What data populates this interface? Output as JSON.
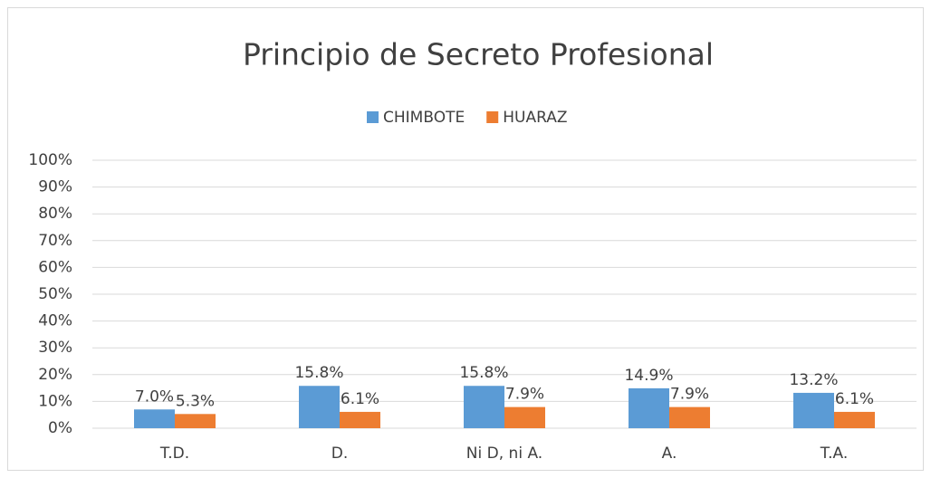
{
  "chart_data": {
    "type": "bar",
    "title": "Principio de Secreto Profesional",
    "categories": [
      "T.D.",
      "D.",
      "Ni D, ni A.",
      "A.",
      "T.A."
    ],
    "series": [
      {
        "name": "CHIMBOTE",
        "color": "#5b9bd5",
        "values": [
          7.0,
          15.8,
          15.8,
          14.9,
          13.2
        ],
        "value_labels": [
          "7.0%",
          "15.8%",
          "15.8%",
          "14.9%",
          "13.2%"
        ]
      },
      {
        "name": "HUARAZ",
        "color": "#ed7d31",
        "values": [
          5.3,
          6.1,
          7.9,
          7.9,
          6.1
        ],
        "value_labels": [
          "5.3%",
          "6.1%",
          "7.9%",
          "7.9%",
          "6.1%"
        ]
      }
    ],
    "ylim": [
      0,
      100
    ],
    "yticks": [
      {
        "value": 0,
        "label": "0%"
      },
      {
        "value": 10,
        "label": "10%"
      },
      {
        "value": 20,
        "label": "20%"
      },
      {
        "value": 30,
        "label": "30%"
      },
      {
        "value": 40,
        "label": "40%"
      },
      {
        "value": 50,
        "label": "50%"
      },
      {
        "value": 60,
        "label": "60%"
      },
      {
        "value": 70,
        "label": "70%"
      },
      {
        "value": 80,
        "label": "80%"
      },
      {
        "value": 90,
        "label": "90%"
      },
      {
        "value": 100,
        "label": "100%"
      }
    ],
    "grid": true,
    "legend": "top"
  }
}
